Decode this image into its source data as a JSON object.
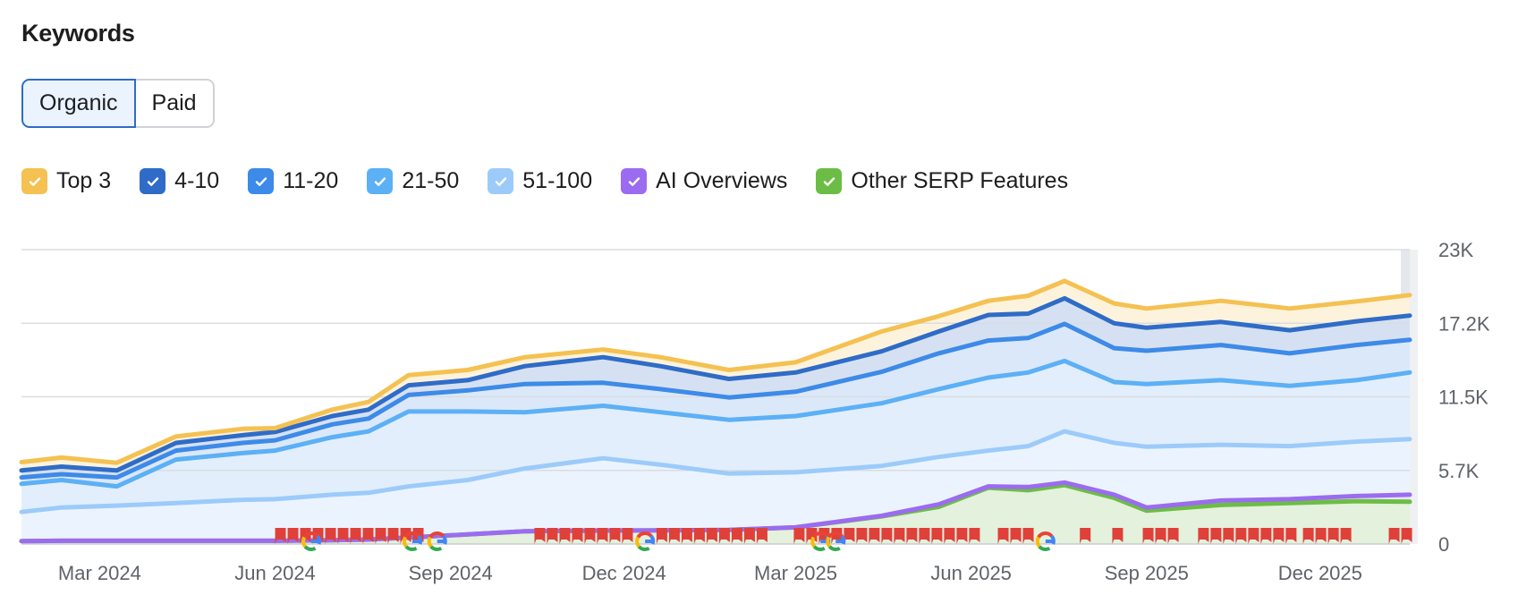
{
  "title": "Keywords",
  "toggle": {
    "organic": "Organic",
    "paid": "Paid",
    "selected": "Organic"
  },
  "legend": [
    {
      "label": "Top 3",
      "color": "#f4c152",
      "checked": true
    },
    {
      "label": "4-10",
      "color": "#2f6cc7",
      "checked": true
    },
    {
      "label": "11-20",
      "color": "#3d8ae8",
      "checked": true
    },
    {
      "label": "21-50",
      "color": "#5cb0f5",
      "checked": true
    },
    {
      "label": "51-100",
      "color": "#9ccbfa",
      "checked": true
    },
    {
      "label": "AI Overviews",
      "color": "#9b6cf0",
      "checked": true
    },
    {
      "label": "Other SERP Features",
      "color": "#6cbd45",
      "checked": true
    }
  ],
  "chart_data": {
    "type": "area",
    "stacked": true,
    "y_axis_position": "right",
    "ylim": [
      0,
      23000
    ],
    "y_ticks": [
      "0",
      "5.7K",
      "11.5K",
      "17.2K",
      "23K"
    ],
    "y_tick_values": [
      0,
      5750,
      11500,
      17250,
      23000
    ],
    "x_ticks": [
      "Mar 2024",
      "Jun 2024",
      "Sep 2024",
      "Dec 2024",
      "Mar 2025",
      "Jun 2025",
      "Sep 2025",
      "Dec 2025"
    ],
    "x_tick_dates": [
      "2024-03-01",
      "2024-06-01",
      "2024-09-01",
      "2024-12-01",
      "2025-03-01",
      "2025-06-01",
      "2025-09-01",
      "2025-12-01"
    ],
    "xlim": [
      "2024-01-20",
      "2026-01-17"
    ],
    "grid": true,
    "x": [
      "2024-01-20",
      "2024-02-10",
      "2024-03-10",
      "2024-04-10",
      "2024-05-15",
      "2024-06-01",
      "2024-07-01",
      "2024-07-20",
      "2024-08-10",
      "2024-09-10",
      "2024-10-10",
      "2024-11-20",
      "2024-12-20",
      "2025-01-25",
      "2025-03-01",
      "2025-04-15",
      "2025-05-15",
      "2025-06-10",
      "2025-07-01",
      "2025-07-20",
      "2025-08-15",
      "2025-09-01",
      "2025-10-10",
      "2025-11-15",
      "2025-12-20",
      "2026-01-17"
    ],
    "series": [
      {
        "name": "Other SERP Features",
        "color": "#6cbd45",
        "fill": "#e4f1dc",
        "values": [
          230,
          250,
          250,
          250,
          250,
          250,
          300,
          350,
          500,
          750,
          1000,
          1050,
          1070,
          1100,
          1300,
          2150,
          2900,
          4400,
          4200,
          4600,
          3600,
          2600,
          3050,
          3200,
          3350,
          3300
        ]
      },
      {
        "name": "AI Overviews",
        "color": "#9b6cf0",
        "fill": "#ebe4fb",
        "values": [
          0,
          0,
          0,
          0,
          0,
          0,
          0,
          0,
          0,
          0,
          0,
          0,
          0,
          0,
          0,
          50,
          200,
          100,
          250,
          200,
          250,
          250,
          350,
          300,
          400,
          550
        ]
      },
      {
        "name": "51-100",
        "color": "#9ccbfa",
        "fill": "#ebf4fe",
        "values": [
          2270,
          2600,
          2750,
          2950,
          3200,
          3250,
          3550,
          3650,
          4000,
          4250,
          4900,
          5650,
          5130,
          4400,
          4300,
          3900,
          3700,
          2800,
          3200,
          4000,
          4050,
          4750,
          4350,
          4150,
          4250,
          4350
        ]
      },
      {
        "name": "21-50",
        "color": "#5cb0f5",
        "fill": "#e2eefc",
        "values": [
          2200,
          2150,
          1500,
          3400,
          3650,
          3800,
          4500,
          4800,
          5850,
          5350,
          4400,
          4100,
          4100,
          4200,
          4400,
          4900,
          5300,
          5700,
          5750,
          5500,
          4750,
          4900,
          5050,
          4700,
          4800,
          5200
        ]
      },
      {
        "name": "11-20",
        "color": "#3d8ae8",
        "fill": "#dbe8f9",
        "values": [
          500,
          450,
          700,
          700,
          800,
          800,
          1000,
          1000,
          1300,
          1650,
          2200,
          1800,
          1800,
          1750,
          1900,
          2450,
          2800,
          2900,
          2700,
          2900,
          2650,
          2600,
          2750,
          2550,
          2750,
          2550
        ]
      },
      {
        "name": "4-10",
        "color": "#2f6cc7",
        "fill": "#d5e1f2",
        "values": [
          550,
          600,
          550,
          600,
          600,
          650,
          650,
          700,
          750,
          800,
          1400,
          2000,
          1800,
          1450,
          1500,
          1600,
          1700,
          2000,
          1900,
          2000,
          1950,
          1800,
          1800,
          1800,
          1850,
          1900
        ]
      },
      {
        "name": "Top 3",
        "color": "#f4c152",
        "fill": "#fdf3dc",
        "values": [
          650,
          700,
          600,
          500,
          500,
          300,
          500,
          600,
          800,
          800,
          700,
          600,
          700,
          700,
          800,
          1550,
          1200,
          1100,
          1400,
          1350,
          1550,
          1500,
          1650,
          1700,
          1550,
          1600
        ]
      }
    ],
    "annotations": {
      "flag_color": "#e0403a",
      "flag_ranges": [
        [
          "2024-06-01",
          "2024-08-18"
        ],
        [
          "2024-10-15",
          "2024-12-03"
        ],
        [
          "2024-12-18",
          "2025-02-15"
        ],
        [
          "2025-02-28",
          "2025-06-05"
        ],
        [
          "2025-06-15",
          "2025-07-03"
        ],
        [
          "2025-07-28",
          "2025-07-31"
        ],
        [
          "2025-08-14",
          "2025-08-17"
        ],
        [
          "2025-08-30",
          "2025-09-18"
        ],
        [
          "2025-09-28",
          "2025-11-14"
        ],
        [
          "2025-11-22",
          "2025-12-13"
        ],
        [
          "2026-01-06",
          "2026-01-17"
        ]
      ],
      "google_update_dates": [
        "2024-06-20",
        "2024-08-12",
        "2024-08-25",
        "2024-12-12",
        "2025-03-14",
        "2025-03-22",
        "2025-07-10"
      ]
    }
  }
}
